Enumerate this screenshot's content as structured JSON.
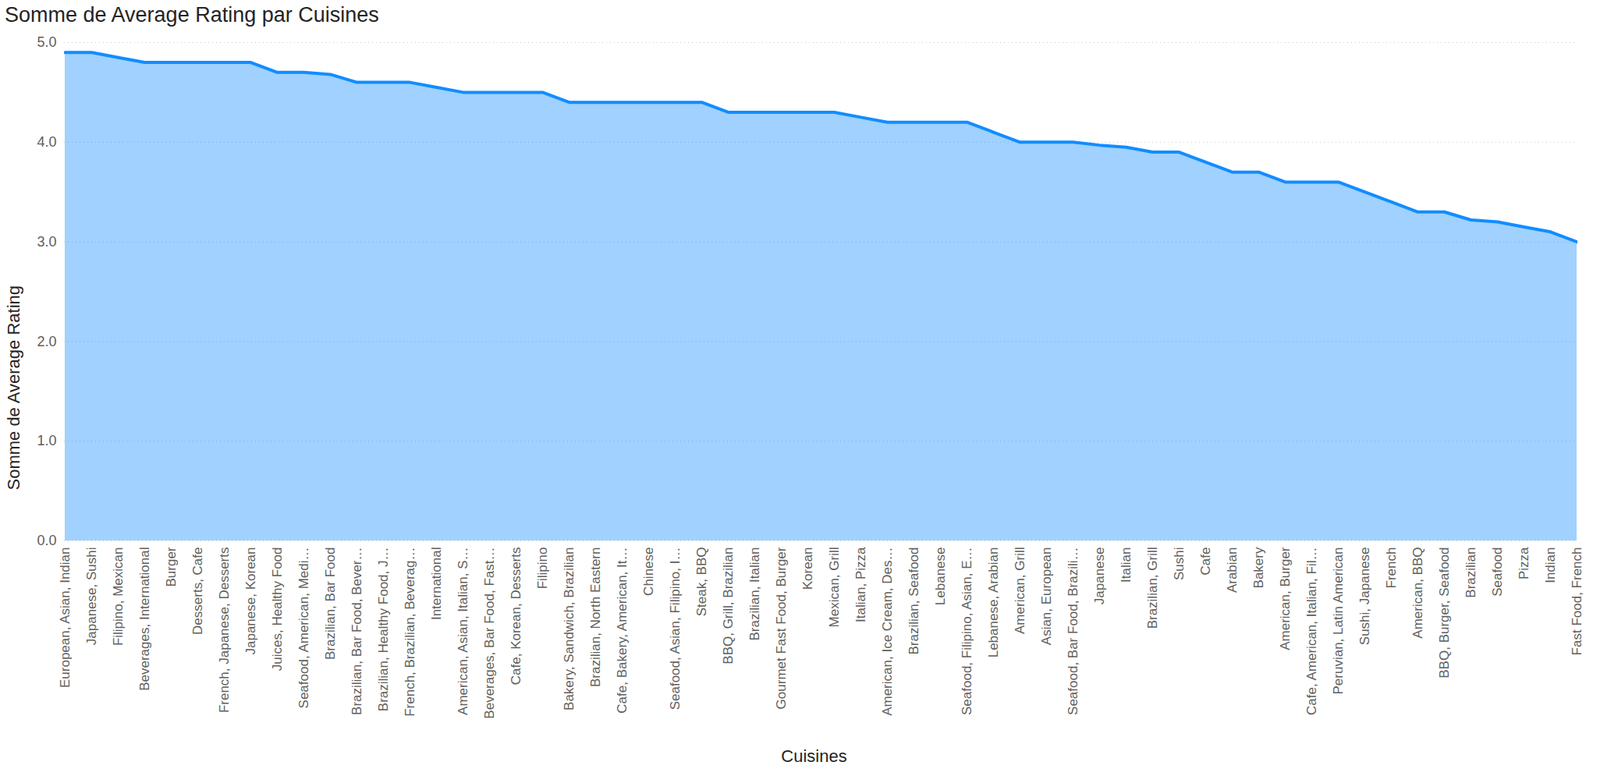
{
  "chart_data": {
    "type": "area",
    "title": "Somme de Average Rating par Cuisines",
    "x_label": "Cuisines",
    "y_label": "Somme de Average Rating",
    "categories": [
      "European, Asian, Indian",
      "Japanese, Sushi",
      "Filipino, Mexican",
      "Beverages, International",
      "Burger",
      "Desserts, Cafe",
      "French, Japanese, Desserts",
      "Japanese, Korean",
      "Juices, Healthy Food",
      "Seafood, American, Medi…",
      "Brazilian, Bar Food",
      "Brazilian, Bar Food, Bever…",
      "Brazilian, Healthy Food, J…",
      "French, Brazilian, Beverag…",
      "International",
      "American, Asian, Italian, S…",
      "Beverages, Bar Food, Fast…",
      "Cafe, Korean, Desserts",
      "Filipino",
      "Bakery, Sandwich, Brazilian",
      "Brazilian, North Eastern",
      "Cafe, Bakery, American, It…",
      "Chinese",
      "Seafood, Asian, Filipino, I…",
      "Steak, BBQ",
      "BBQ, Grill, Brazilian",
      "Brazilian, Italian",
      "Gourmet Fast Food, Burger",
      "Korean",
      "Mexican, Grill",
      "Italian, Pizza",
      "American, Ice Cream, Des…",
      "Brazilian, Seafood",
      "Lebanese",
      "Seafood, Filipino, Asian, E…",
      "Lebanese, Arabian",
      "American, Grill",
      "Asian, European",
      "Seafood, Bar Food, Brazili…",
      "Japanese",
      "Italian",
      "Brazilian, Grill",
      "Sushi",
      "Cafe",
      "Arabian",
      "Bakery",
      "American, Burger",
      "Cafe, American, Italian, Fil…",
      "Peruvian, Latin American",
      "Sushi, Japanese",
      "French",
      "American, BBQ",
      "BBQ, Burger, Seafood",
      "Brazilian",
      "Seafood",
      "Pizza",
      "Indian",
      "Fast Food, French"
    ],
    "values": [
      4.9,
      4.9,
      4.85,
      4.8,
      4.8,
      4.8,
      4.8,
      4.8,
      4.7,
      4.7,
      4.68,
      4.6,
      4.6,
      4.6,
      4.55,
      4.5,
      4.5,
      4.5,
      4.5,
      4.4,
      4.4,
      4.4,
      4.4,
      4.4,
      4.4,
      4.3,
      4.3,
      4.3,
      4.3,
      4.3,
      4.25,
      4.2,
      4.2,
      4.2,
      4.2,
      4.1,
      4.0,
      4.0,
      4.0,
      3.97,
      3.95,
      3.9,
      3.9,
      3.8,
      3.7,
      3.7,
      3.6,
      3.6,
      3.6,
      3.5,
      3.4,
      3.3,
      3.3,
      3.22,
      3.2,
      3.15,
      3.1,
      3.0
    ],
    "color": "#118DFF",
    "ylim": [
      0,
      5
    ],
    "yticks": [
      0,
      1,
      2,
      3,
      4,
      5
    ],
    "grid": true
  }
}
